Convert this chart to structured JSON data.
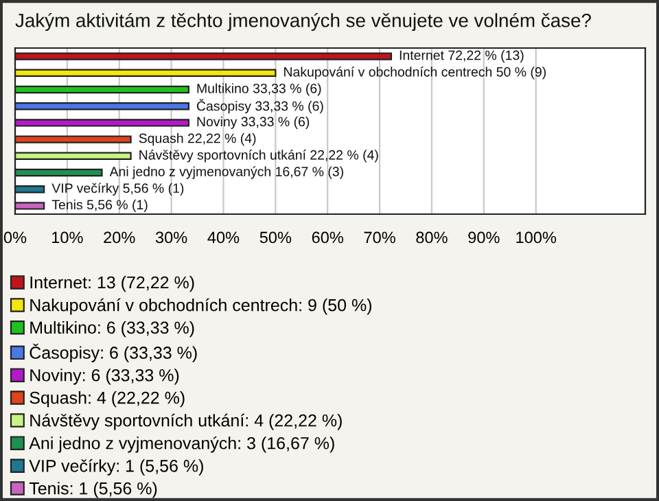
{
  "chart_data": {
    "type": "bar",
    "orientation": "horizontal",
    "title": "Jakým aktivitám z těchto jmenovaných se věnujete ve volném čase?",
    "categories": [
      null,
      null,
      null,
      null,
      null,
      null,
      null,
      null,
      null,
      null
    ],
    "series": [
      {
        "name": "Internet: 13 (72,22 %)",
        "color": "#c0141c",
        "values": [
          72.22,
          null,
          null,
          null,
          null,
          null,
          null,
          null,
          null,
          null
        ],
        "value_labels": [
          "Internet 72,22 % (13)",
          null,
          null,
          null,
          null,
          null,
          null,
          null,
          null,
          null
        ]
      },
      {
        "name": "Nakupování v obchodních centrech: 9 (50 %)",
        "color": "#f5e60f",
        "values": [
          null,
          50,
          null,
          null,
          null,
          null,
          null,
          null,
          null,
          null
        ],
        "value_labels": [
          null,
          "Nakupování v obchodních centrech 50 % (9)",
          null,
          null,
          null,
          null,
          null,
          null,
          null,
          null
        ]
      },
      {
        "name": "Multikino: 6 (33,33 %)",
        "color": "#1ec31e",
        "values": [
          null,
          null,
          33.33,
          null,
          null,
          null,
          null,
          null,
          null,
          null
        ],
        "value_labels": [
          null,
          null,
          "Multikino 33,33 % (6)",
          null,
          null,
          null,
          null,
          null,
          null,
          null
        ]
      },
      {
        "name": "Časopisy: 6 (33,33 %)",
        "color": "#4a78e6",
        "values": [
          null,
          null,
          null,
          33.33,
          null,
          null,
          null,
          null,
          null,
          null
        ],
        "value_labels": [
          null,
          null,
          null,
          "Časopisy 33,33 % (6)",
          null,
          null,
          null,
          null,
          null,
          null
        ]
      },
      {
        "name": "Noviny: 6 (33,33 %)",
        "color": "#b419c8",
        "values": [
          null,
          null,
          null,
          null,
          33.33,
          null,
          null,
          null,
          null,
          null
        ],
        "value_labels": [
          null,
          null,
          null,
          null,
          "Noviny 33,33 % (6)",
          null,
          null,
          null,
          null,
          null
        ]
      },
      {
        "name": "Squash: 4 (22,22 %)",
        "color": "#e0441a",
        "values": [
          null,
          null,
          null,
          null,
          null,
          22.22,
          null,
          null,
          null,
          null
        ],
        "value_labels": [
          null,
          null,
          null,
          null,
          null,
          "Squash 22,22 % (4)",
          null,
          null,
          null,
          null
        ]
      },
      {
        "name": "Návštěvy sportovních utkání: 4 (22,22 %)",
        "color": "#c8f582",
        "values": [
          null,
          null,
          null,
          null,
          null,
          null,
          22.22,
          null,
          null,
          null
        ],
        "value_labels": [
          null,
          null,
          null,
          null,
          null,
          null,
          "Návštěvy sportovních utkání 22,22 % (4)",
          null,
          null,
          null
        ]
      },
      {
        "name": "Ani jedno z vyjmenovaných: 3 (16,67 %)",
        "color": "#1e9150",
        "values": [
          null,
          null,
          null,
          null,
          null,
          null,
          null,
          16.67,
          null,
          null
        ],
        "value_labels": [
          null,
          null,
          null,
          null,
          null,
          null,
          null,
          "Ani jedno z vyjmenovaných 16,67 % (3)",
          null,
          null
        ]
      },
      {
        "name": "VIP večírky: 1 (5,56 %)",
        "color": "#1e7891",
        "values": [
          null,
          null,
          null,
          null,
          null,
          null,
          null,
          null,
          5.56,
          null
        ],
        "value_labels": [
          null,
          null,
          null,
          null,
          null,
          null,
          null,
          null,
          "VIP večírky 5,56 % (1)",
          null
        ]
      },
      {
        "name": "Tenis: 1 (5,56 %)",
        "color": "#c864c0",
        "values": [
          null,
          null,
          null,
          null,
          null,
          null,
          null,
          null,
          null,
          5.56
        ],
        "value_labels": [
          null,
          null,
          null,
          null,
          null,
          null,
          null,
          null,
          null,
          "Tenis 5,56 % (1)"
        ]
      }
    ],
    "xlim": [
      0,
      121
    ],
    "xticks": [
      {
        "value": 0,
        "label": "0%"
      },
      {
        "value": 10,
        "label": "10%"
      },
      {
        "value": 20,
        "label": "20%"
      },
      {
        "value": 30,
        "label": "30%"
      },
      {
        "value": 40,
        "label": "40%"
      },
      {
        "value": 50,
        "label": "50%"
      },
      {
        "value": 60,
        "label": "60%"
      },
      {
        "value": 70,
        "label": "70%"
      },
      {
        "value": 80,
        "label": "80%"
      },
      {
        "value": 90,
        "label": "90%"
      },
      {
        "value": 100,
        "label": "100%"
      }
    ],
    "grid": "x",
    "legend": "bottom",
    "tick_labels": "x"
  }
}
